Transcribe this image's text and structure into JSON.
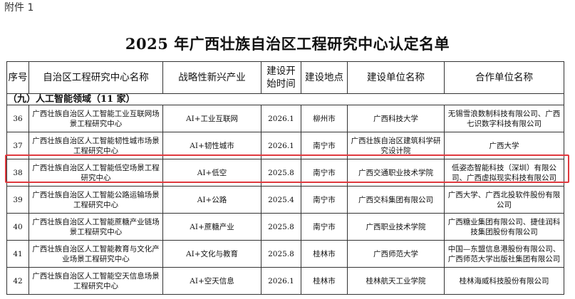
{
  "attachment_label": "附件 1",
  "title": "2025 年广西壮族自治区工程研究中心认定名单",
  "headers": [
    "序号",
    "自治区工程研究中心名称",
    "战略性新兴产业",
    "建设开始时间",
    "建设地点",
    "建设单位名称",
    "合作单位名称"
  ],
  "section": "（九）人工智能领域（11 家）",
  "highlight_color": "#e0393e",
  "rows": [
    {
      "no": "36",
      "name": "广西壮族自治区人工智能工业互联网场景工程研究中心",
      "industry": "AI+工业互联网",
      "start": "2026.1",
      "location": "柳州市",
      "builder": "广西科技大学",
      "partner": "无锡雪浪数制科技有限公司、广西七识数字科技有限公司"
    },
    {
      "no": "37",
      "name": "广西壮族自治区人工智能韧性城市场景工程研究中心",
      "industry": "AI+韧性城市",
      "start": "2026.1",
      "location": "南宁市",
      "builder": "广西壮族自治区建筑科学研究设计院",
      "partner": "广西大学"
    },
    {
      "no": "38",
      "name": "广西壮族自治区人工智能低空场景工程研究中心",
      "industry": "AI+低空",
      "start": "2025.8",
      "location": "南宁市",
      "builder": "广西交通职业技术学院",
      "partner": "低姿态智能科技（深圳）有限公司、广西虚拟现实科技有限公司"
    },
    {
      "no": "39",
      "name": "广西壮族自治区人工智能公路运输场景工程研究中心",
      "industry": "AI+公路",
      "start": "2025.4",
      "location": "南宁市",
      "builder": "广西交科集团有限公司",
      "partner": "广西大学、广西北投软件股份有限公司"
    },
    {
      "no": "40",
      "name": "广西壮族自治区人工智能蔗糖产业链场景工程研究中心",
      "industry": "AI+蔗糖产业",
      "start": "2025.8",
      "location": "南宁市",
      "builder": "广西职业技术学院",
      "partner": "广西糖业集团有限公司、捷佳润科技集团股份有限公司"
    },
    {
      "no": "41",
      "name": "广西壮族自治区人工智能教育与文化产业场景工程研究中心",
      "industry": "AI+文化与教育",
      "start": "2025.8",
      "location": "桂林市",
      "builder": "广西师范大学",
      "partner": "中国—东盟信息港股份有限公司、广西师范大学出版社集团有限公司"
    },
    {
      "no": "42",
      "name": "广西壮族自治区人工智能空天信息场景工程研究中心",
      "industry": "AI+空天信息",
      "start": "2026.1",
      "location": "桂林市",
      "builder": "桂林航天工业学院",
      "partner": "桂林海威科技股份有限公司"
    }
  ]
}
